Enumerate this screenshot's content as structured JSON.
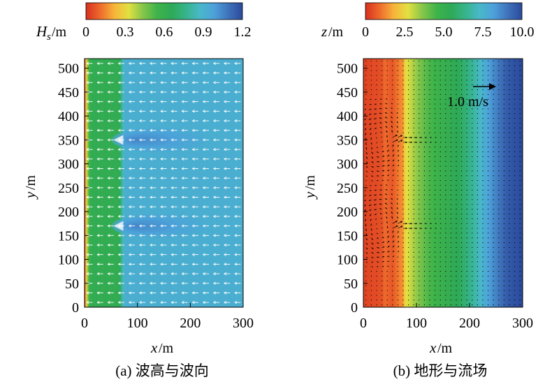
{
  "chart_data": [
    {
      "type": "heatmap",
      "caption": "(a) 波高与波向",
      "colorbar": {
        "label_var": "H",
        "label_sub": "s",
        "label_unit": "/m",
        "ticks": [
          "0",
          "0.3",
          "0.6",
          "0.9",
          "1.2"
        ],
        "range": [
          0,
          1.2
        ]
      },
      "xlabel_var": "x",
      "xlabel_unit": "/m",
      "ylabel_var": "y",
      "ylabel_unit": "/m",
      "x_ticks": [
        "0",
        "100",
        "200",
        "300"
      ],
      "y_ticks": [
        "0",
        "50",
        "100",
        "150",
        "200",
        "250",
        "300",
        "350",
        "400",
        "450",
        "500"
      ],
      "xlim": [
        0,
        300
      ],
      "ylim": [
        0,
        520
      ],
      "field": {
        "cross_shore_profile": [
          {
            "x": 0,
            "value": 0.0
          },
          {
            "x": 3,
            "value": 0.25
          },
          {
            "x": 6,
            "value": 0.45
          },
          {
            "x": 9,
            "value": 0.55
          },
          {
            "x": 12,
            "value": 0.62
          },
          {
            "x": 66,
            "value": 0.62
          },
          {
            "x": 70,
            "value": 0.78
          },
          {
            "x": 76,
            "value": 0.92
          },
          {
            "x": 300,
            "value": 0.92
          }
        ],
        "shadow_zones": [
          {
            "y_center": 350,
            "x_start": 60,
            "x_peak": 95,
            "x_end": 240,
            "value": 1.05
          },
          {
            "y_center": 170,
            "x_start": 60,
            "x_peak": 95,
            "x_end": 240,
            "value": 1.05
          }
        ]
      },
      "vectors": {
        "color": "#ffffff",
        "direction": "shoreward (-x)",
        "dx": 20,
        "dy": 20
      }
    },
    {
      "type": "heatmap",
      "caption": "(b) 地形与流场",
      "colorbar": {
        "label_var": "z",
        "label_unit": "/m",
        "ticks": [
          "0",
          "2.5",
          "5.0",
          "7.5",
          "10.0"
        ],
        "range": [
          0,
          10
        ]
      },
      "xlabel_var": "x",
      "xlabel_unit": "/m",
      "ylabel_var": "y",
      "ylabel_unit": "/m",
      "x_ticks": [
        "0",
        "100",
        "200",
        "300"
      ],
      "y_ticks": [
        "0",
        "50",
        "100",
        "150",
        "200",
        "250",
        "300",
        "350",
        "400",
        "450",
        "500"
      ],
      "xlim": [
        0,
        300
      ],
      "ylim": [
        0,
        520
      ],
      "field": {
        "cross_shore_profile": [
          {
            "x": 0,
            "value": 0.3
          },
          {
            "x": 35,
            "value": 0.5
          },
          {
            "x": 40,
            "value": 0.9
          },
          {
            "x": 55,
            "value": 0.6
          },
          {
            "x": 68,
            "value": 1.2
          },
          {
            "x": 75,
            "value": 1.4
          },
          {
            "x": 78,
            "value": 2.5
          },
          {
            "x": 95,
            "value": 3.3
          },
          {
            "x": 120,
            "value": 4.3
          },
          {
            "x": 180,
            "value": 5.5
          },
          {
            "x": 215,
            "value": 7.0
          },
          {
            "x": 245,
            "value": 8.6
          },
          {
            "x": 270,
            "value": 9.6
          },
          {
            "x": 300,
            "value": 10.0
          }
        ]
      },
      "vectors": {
        "color": "#000000",
        "dx": 10,
        "dy": 10
      },
      "jets": [
        {
          "y_center": 350,
          "x_start": 60,
          "x_end": 150,
          "speed": 1.0
        },
        {
          "y_center": 170,
          "x_start": 60,
          "x_end": 150,
          "speed": 1.0
        }
      ],
      "reference_vector": {
        "label": "1.0 m/s",
        "speed": 1.0
      }
    }
  ],
  "colormap": [
    "#d7301f",
    "#ee6b2c",
    "#f7b53a",
    "#e2e041",
    "#86c64a",
    "#3fb34a",
    "#2ea956",
    "#36b489",
    "#49b8c8",
    "#4da1da",
    "#3f73bb",
    "#2b4a9c"
  ]
}
